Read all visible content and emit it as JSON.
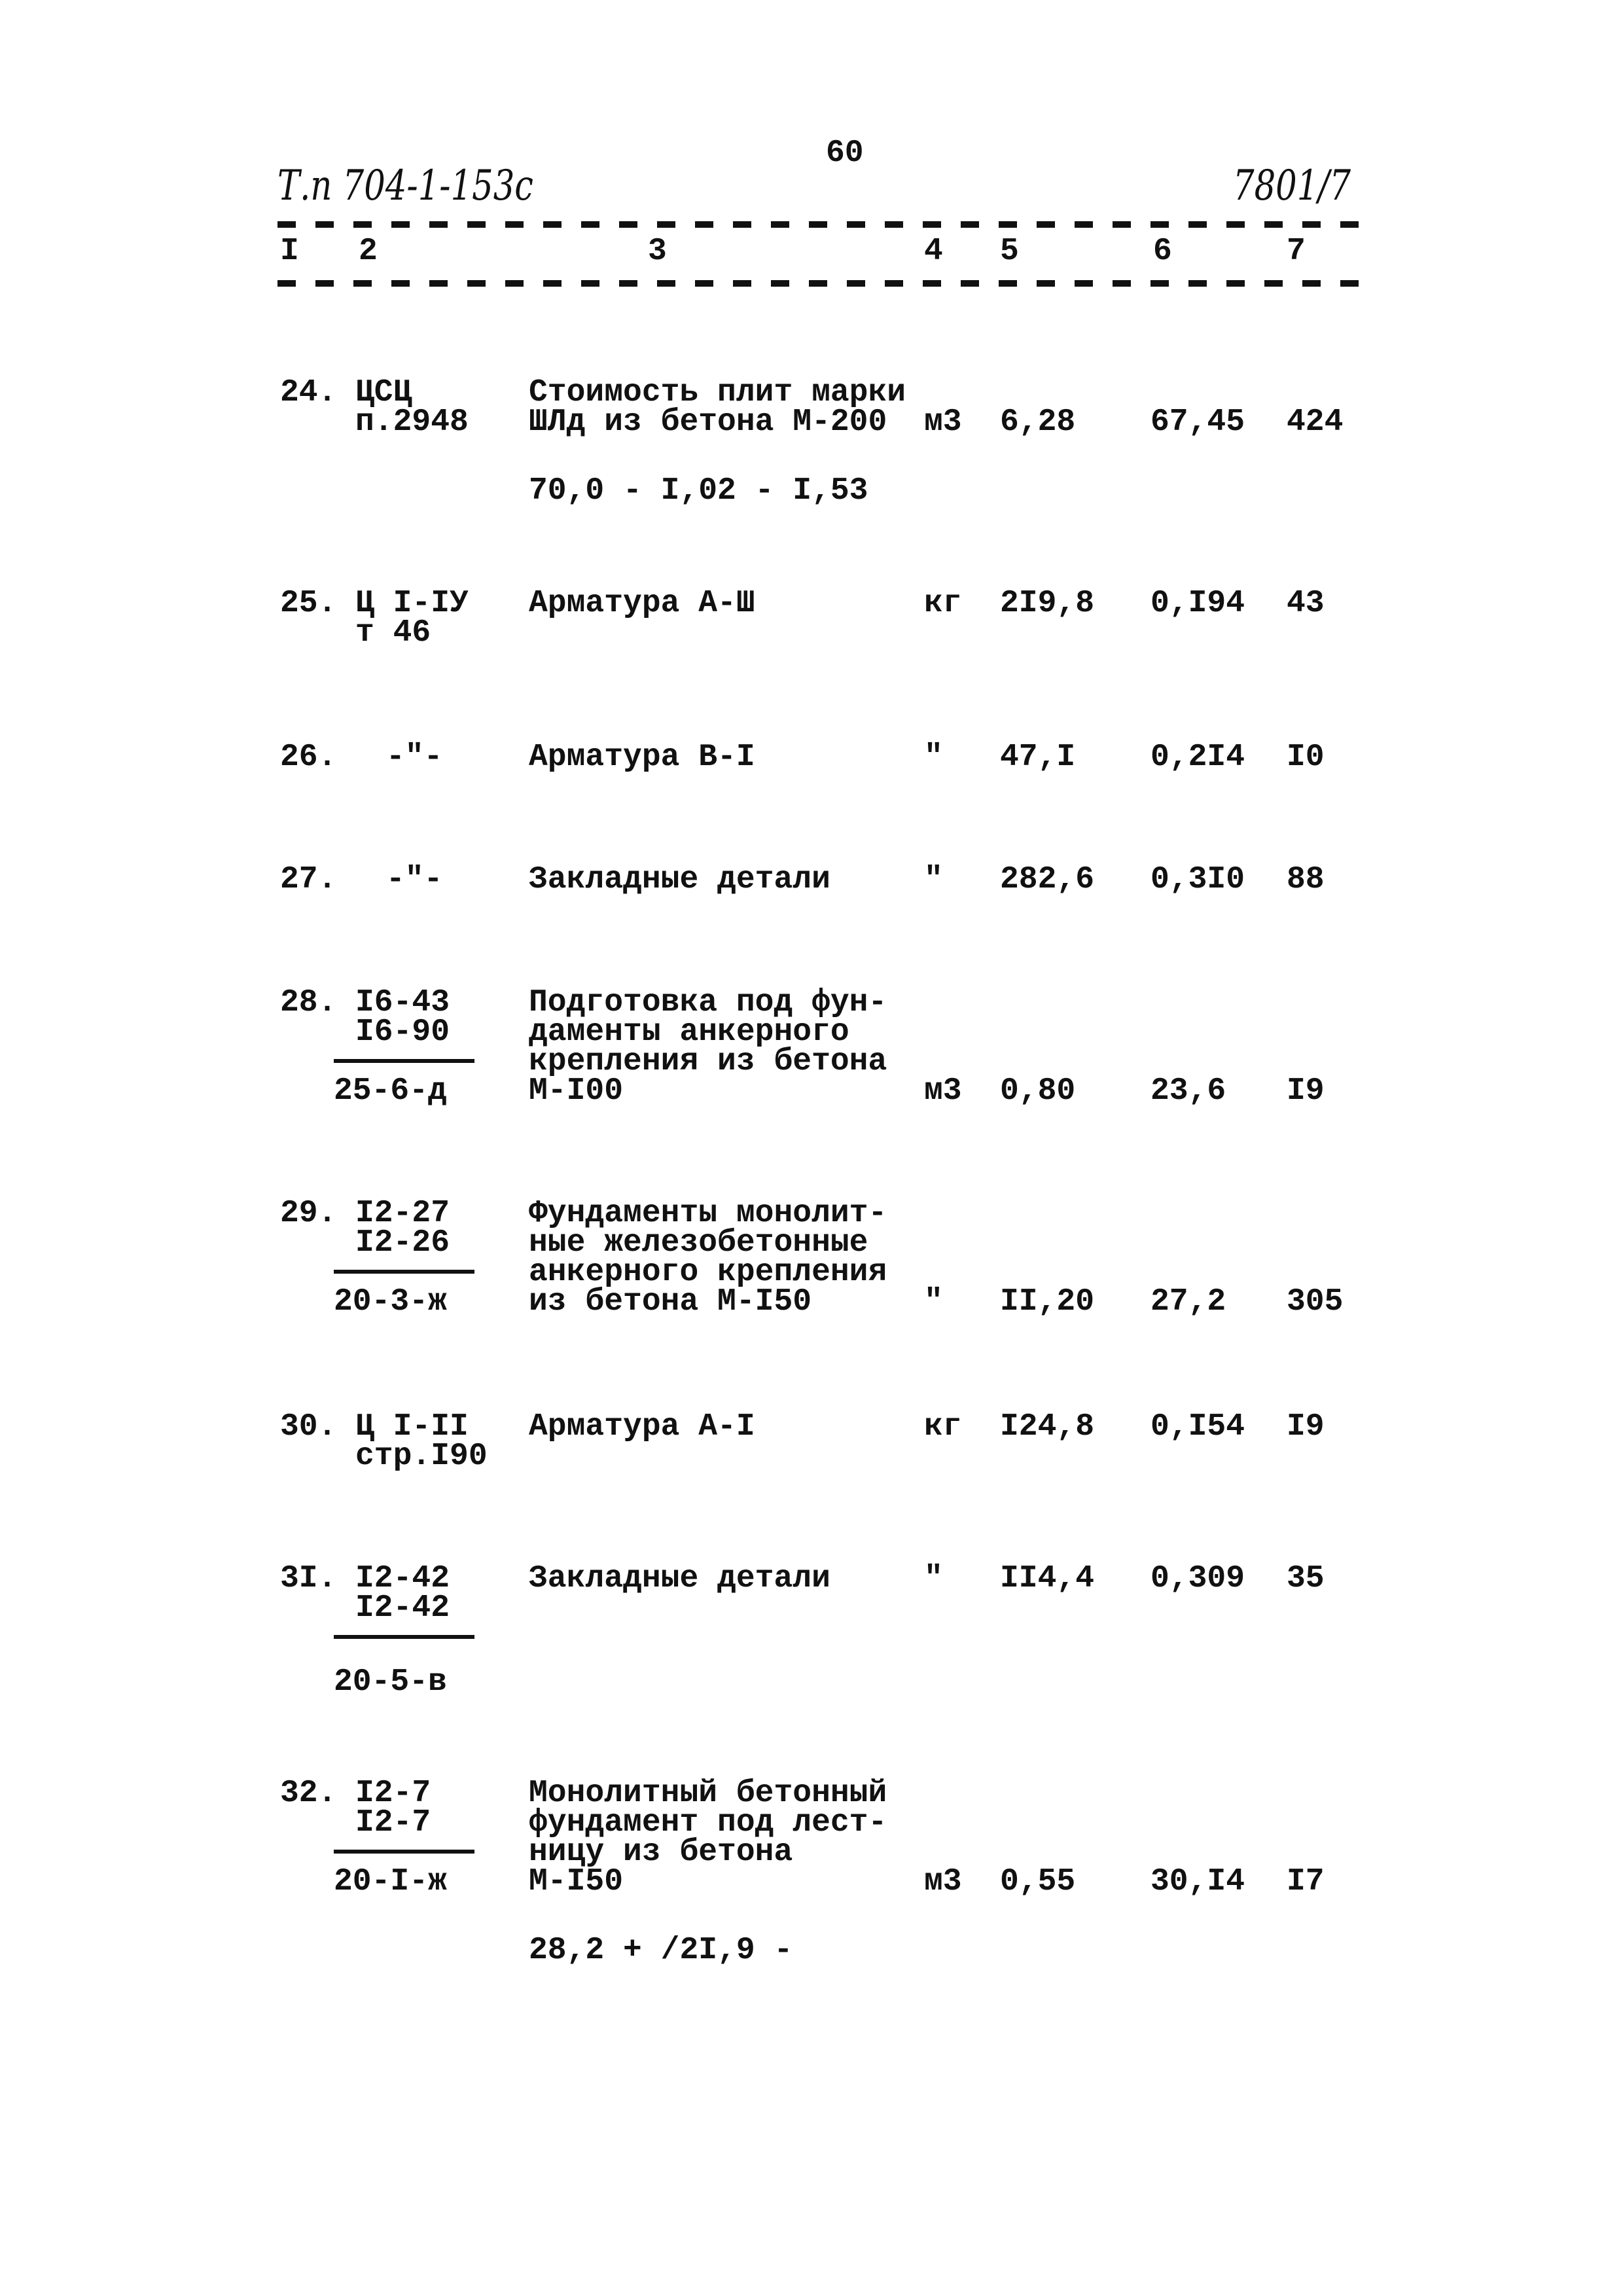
{
  "page_number": "60",
  "doc_code": "Т.п 704-1-153с",
  "doc_ref": "7801/7",
  "column_headers": [
    "I",
    "2",
    "3",
    "4",
    "5",
    "6",
    "7"
  ],
  "rows": [
    {
      "num": "24.",
      "code": [
        "ЦСЦ",
        "п.2948"
      ],
      "desc": [
        "Стоимость плит марки",
        "ШЛд из бетона М-200"
      ],
      "unit": "м3",
      "qty": "6,28",
      "price": "67,45",
      "total": "424",
      "formula": "70,0 - I,02 - I,53"
    },
    {
      "num": "25.",
      "code": [
        "Ц I-IУ",
        "т 46"
      ],
      "desc": [
        "Арматура А-Ш"
      ],
      "unit": "кг",
      "qty": "2I9,8",
      "price": "0,I94",
      "total": "43"
    },
    {
      "num": "26.",
      "code": [
        "-\"-"
      ],
      "desc": [
        "Арматура В-I"
      ],
      "unit": "\"",
      "qty": "47,I",
      "price": "0,2I4",
      "total": "I0"
    },
    {
      "num": "27.",
      "code": [
        "-\"-"
      ],
      "desc": [
        "Закладные детали"
      ],
      "unit": "\"",
      "qty": "282,6",
      "price": "0,3I0",
      "total": "88"
    },
    {
      "num": "28.",
      "code": [
        "I6-43",
        "I6-90"
      ],
      "code_denominator": "25-6-д",
      "desc": [
        "Подготовка под фун-",
        "даменты анкерного",
        "крепления из бетона",
        "М-I00"
      ],
      "unit": "м3",
      "qty": "0,80",
      "price": "23,6",
      "total": "I9"
    },
    {
      "num": "29.",
      "code": [
        "I2-27",
        "I2-26"
      ],
      "code_denominator": "20-3-ж",
      "desc": [
        "Фундаменты монолит-",
        "ные железобетонные",
        "анкерного крепления",
        "из бетона М-I50"
      ],
      "unit": "\"",
      "qty": "II,20",
      "price": "27,2",
      "total": "305"
    },
    {
      "num": "30.",
      "code": [
        "Ц I-II",
        "стр.I90"
      ],
      "desc": [
        "Арматура А-I"
      ],
      "unit": "кг",
      "qty": "I24,8",
      "price": "0,I54",
      "total": "I9"
    },
    {
      "num": "3I.",
      "code": [
        "I2-42",
        "I2-42"
      ],
      "code_denominator": "20-5-в",
      "desc": [
        "Закладные детали"
      ],
      "unit": "\"",
      "qty": "II4,4",
      "price": "0,309",
      "total": "35"
    },
    {
      "num": "32.",
      "code": [
        "I2-7",
        "I2-7"
      ],
      "code_denominator": "20-I-ж",
      "desc": [
        "Монолитный бетонный",
        "фундамент под лест-",
        "ницу из бетона",
        "М-I50"
      ],
      "unit": "м3",
      "qty": "0,55",
      "price": "30,I4",
      "total": "I7",
      "formula": "28,2 + /2I,9 -"
    }
  ]
}
